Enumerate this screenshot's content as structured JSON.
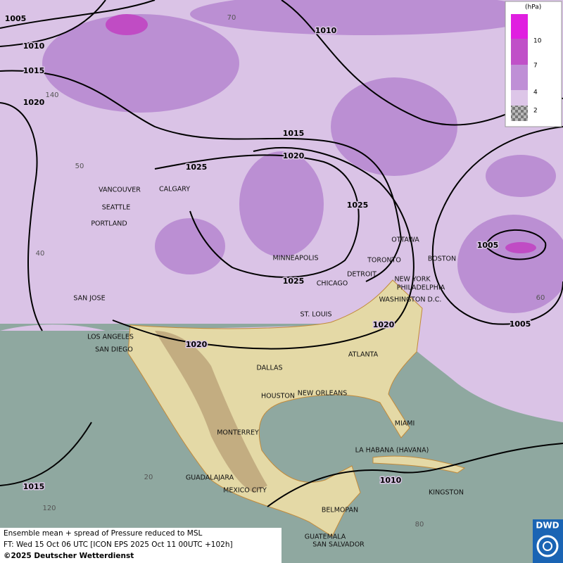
{
  "map": {
    "footer": [
      "Ensemble mean + spread of Pressure reduced to MSL",
      "FT: Wed 15 Oct 06 UTC [ICON EPS 2025 Oct 11 00UTC +102h]",
      "©2025 Deutscher Wetterdienst"
    ],
    "logo": "DWD",
    "legend": {
      "unit": "(hPa)",
      "levels": [
        10,
        7,
        4,
        2
      ]
    },
    "cities": [
      "VANCOUVER",
      "CALGARY",
      "SEATTLE",
      "PORTLAND",
      "MINNEAPOLIS",
      "TORONTO",
      "OTTAWA",
      "BOSTON",
      "DETROIT",
      "CHICAGO",
      "NEW YORK",
      "PHILADELPHIA",
      "WASHINGTON D.C.",
      "SAN JOSE",
      "ST. LOUIS",
      "LOS ANGELES",
      "SAN DIEGO",
      "ATLANTA",
      "DALLAS",
      "HOUSTON",
      "NEW ORLEANS",
      "MIAMI",
      "MONTERREY",
      "LA HABANA (HAVANA)",
      "GUADALAJARA",
      "MEXICO CITY",
      "KINGSTON",
      "BELMOPAN",
      "GUATEMALA",
      "SAN SALVADOR"
    ],
    "isobar_labels": [
      1005,
      1010,
      1015,
      1020,
      1010,
      1015,
      1020,
      1025,
      1025,
      1025,
      1005,
      1005,
      1020,
      1020,
      1010,
      1015
    ],
    "graticule_labels": [
      70,
      140,
      50,
      40,
      60,
      20,
      120,
      80
    ]
  }
}
